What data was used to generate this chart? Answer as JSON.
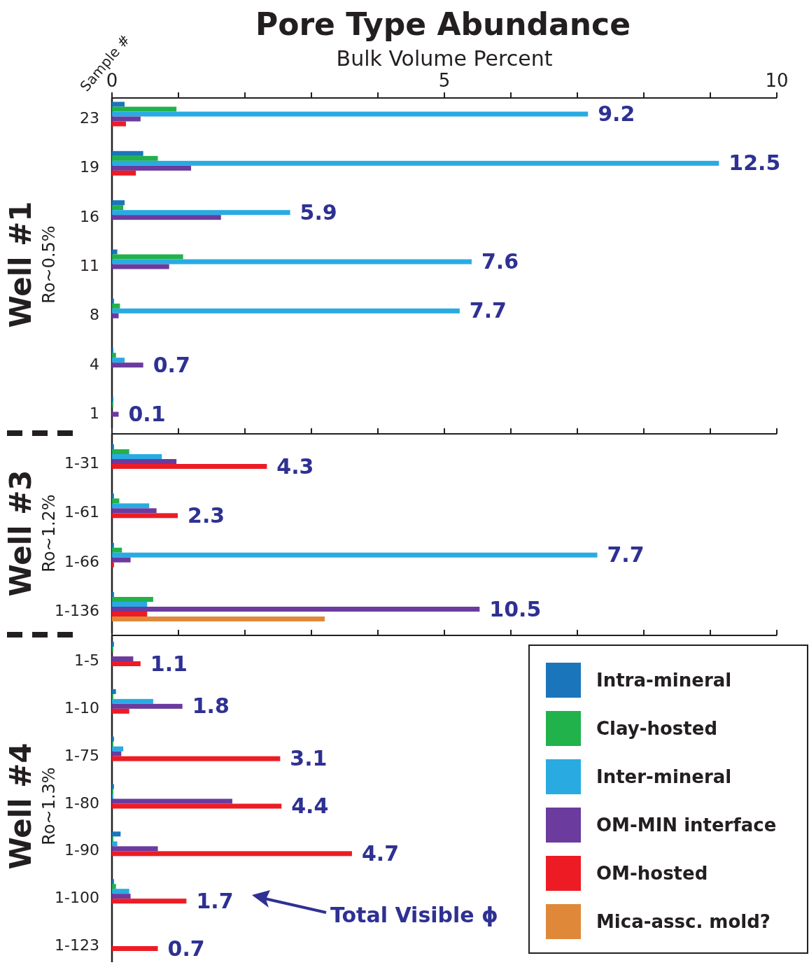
{
  "chart_data": [
    {
      "type": "bar",
      "orientation": "horizontal",
      "title": "Pore Type Abundance",
      "xlabel": "Bulk Volume Percent",
      "ylabel": "Well #1",
      "subtitle": "Ro~0.5%",
      "annotations": [
        "Sample #",
        "9.2",
        "12.5",
        "5.9",
        "7.6",
        "7.7",
        "0.7",
        "0.1"
      ],
      "categories": [
        "23",
        "19",
        "16",
        "11",
        "8",
        "4",
        "1"
      ],
      "xlim": [
        0,
        10
      ],
      "xticks": [
        0,
        {
          "value": 1,
          "label": null
        },
        {
          "value": 2,
          "label": null
        },
        {
          "value": 3,
          "label": null
        },
        {
          "value": 4,
          "label": null
        },
        5,
        {
          "value": 6,
          "label": null
        },
        {
          "value": 7,
          "label": null
        },
        {
          "value": 8,
          "label": null
        },
        {
          "value": 9,
          "label": null
        },
        10
      ],
      "series": [
        {
          "color": "#1b75bb",
          "values": [
            0.19,
            0.47,
            0.19,
            0.08,
            0.03,
            0.02,
            0.02
          ]
        },
        {
          "color": "#21b24b",
          "values": [
            0.97,
            0.69,
            0.17,
            1.07,
            0.12,
            0.06,
            0.02
          ]
        },
        {
          "color": "#29abe2",
          "values": [
            7.16,
            9.13,
            2.68,
            5.41,
            5.23,
            0.19,
            null
          ]
        },
        {
          "color": "#6b3b9e",
          "values": [
            0.43,
            1.19,
            1.64,
            0.86,
            0.1,
            0.47,
            0.1
          ]
        },
        {
          "color": "#ed1c24",
          "values": [
            0.21,
            0.36,
            null,
            null,
            null,
            null,
            null
          ]
        }
      ]
    },
    {
      "type": "bar",
      "orientation": "horizontal",
      "ylabel": "Well #3",
      "subtitle": "Ro~1.2%",
      "tick_labels": "y",
      "annotations": [
        "4.3",
        "2.3",
        "7.7",
        "10.5"
      ],
      "categories": [
        "1-31",
        "1-61",
        "1-66",
        "1-136"
      ],
      "xlim": [
        0,
        10
      ],
      "xticks": [
        0,
        {
          "value": 1,
          "label": null
        },
        {
          "value": 2,
          "label": null
        },
        {
          "value": 3,
          "label": null
        },
        {
          "value": 4,
          "label": null
        },
        5,
        {
          "value": 6,
          "label": null
        },
        {
          "value": 7,
          "label": null
        },
        {
          "value": 8,
          "label": null
        },
        {
          "value": 9,
          "label": null
        },
        10
      ],
      "series": [
        {
          "color": "#1b75bb",
          "values": [
            0.03,
            0.03,
            0.03,
            0.03
          ]
        },
        {
          "color": "#21b24b",
          "values": [
            0.26,
            0.11,
            0.15,
            0.62
          ]
        },
        {
          "color": "#29abe2",
          "values": [
            0.75,
            0.56,
            7.3,
            0.53
          ]
        },
        {
          "color": "#6b3b9e",
          "values": [
            0.97,
            0.67,
            0.28,
            5.53
          ]
        },
        {
          "color": "#ed1c24",
          "values": [
            2.33,
            0.99,
            0.03,
            0.53
          ]
        },
        {
          "color": "#e0883a",
          "values": [
            null,
            null,
            null,
            3.2
          ]
        }
      ]
    },
    {
      "type": "bar",
      "orientation": "horizontal",
      "ylabel": "Well #4",
      "subtitle": "Ro~1.3%",
      "tick_labels": "y",
      "annotations": [
        "Total Visible ϕ",
        "1.1",
        "1.8",
        "3.1",
        "4.4",
        "4.7",
        "1.7",
        "0.7"
      ],
      "categories": [
        "1-5",
        "1-10",
        "1-75",
        "1-80",
        "1-90",
        "1-100",
        "1-123"
      ],
      "xlim": [
        0,
        10
      ],
      "xticks": [
        0,
        {
          "value": 1,
          "label": null
        },
        {
          "value": 2,
          "label": null
        },
        {
          "value": 3,
          "label": null
        },
        {
          "value": 4,
          "label": null
        },
        5,
        {
          "value": 6,
          "label": null
        },
        {
          "value": 7,
          "label": null
        },
        {
          "value": 8,
          "label": null
        },
        {
          "value": 9,
          "label": null
        },
        10
      ],
      "legend": "bottom right",
      "series": [
        {
          "name": "Intra-mineral",
          "color": "#1b75bb",
          "values": [
            0.03,
            0.06,
            0.03,
            0.03,
            0.13,
            0.03,
            null
          ]
        },
        {
          "name": "Clay-hosted",
          "color": "#21b24b",
          "values": [
            0.02,
            0.02,
            0.02,
            0.02,
            0.02,
            0.06,
            null
          ]
        },
        {
          "name": "Inter-mineral",
          "color": "#29abe2",
          "values": [
            null,
            0.62,
            0.17,
            0.02,
            0.08,
            0.26,
            null
          ]
        },
        {
          "name": "OM-MIN interface",
          "color": "#6b3b9e",
          "values": [
            0.32,
            1.06,
            0.14,
            1.81,
            0.69,
            0.28,
            null
          ]
        },
        {
          "name": "OM-hosted",
          "color": "#ed1c24",
          "values": [
            0.43,
            0.26,
            2.53,
            2.55,
            3.61,
            1.12,
            0.69
          ]
        },
        {
          "name": "Mica-assc. mold?",
          "color": "#e0883a",
          "values": [
            null,
            null,
            null,
            null,
            null,
            null,
            null
          ]
        }
      ]
    }
  ]
}
